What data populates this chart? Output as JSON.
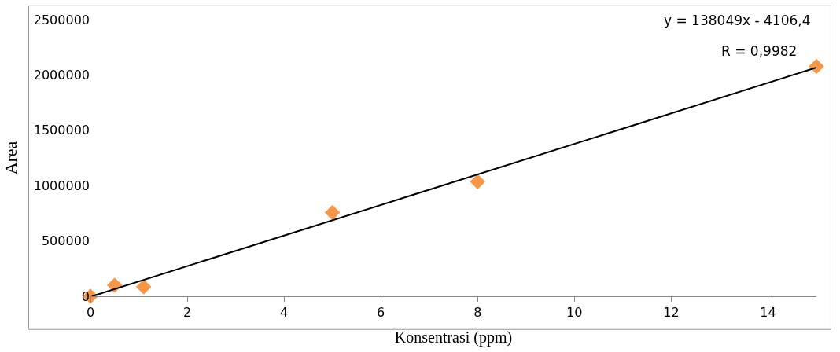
{
  "chart_data": {
    "type": "scatter",
    "xlabel": "Konsentrasi (ppm)",
    "ylabel": "Area",
    "annotations": [
      "y = 138049x - 4106,4",
      "R = 0,9982"
    ],
    "series": [
      {
        "color": "#f79646",
        "marker": "diamond",
        "x": [
          0,
          0.5,
          1.1,
          5,
          8,
          15
        ],
        "values": [
          0,
          100000,
          85000,
          757000,
          1035000,
          2077000
        ]
      },
      {
        "type": "line",
        "color": "#000000",
        "marker": "none",
        "x": [
          0.03,
          15
        ],
        "values": [
          0,
          2067000
        ]
      }
    ],
    "xlim": [
      0,
      15
    ],
    "xticks": [
      0,
      2,
      4,
      6,
      8,
      10,
      12,
      14
    ],
    "ylim": [
      0,
      2500000
    ],
    "yticks": [
      0,
      500000,
      1000000,
      1500000,
      2000000,
      2500000
    ]
  }
}
